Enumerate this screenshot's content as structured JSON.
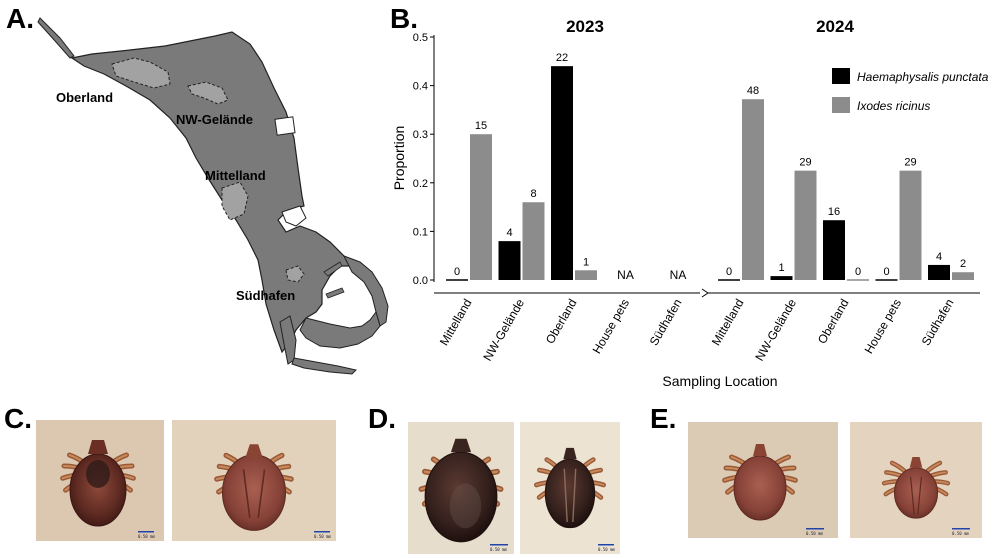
{
  "panels": {
    "A": "A.",
    "B": "B.",
    "C": "C.",
    "D": "D.",
    "E": "E."
  },
  "map": {
    "labels": [
      "Oberland",
      "NW-Gelände",
      "Mittelland",
      "Südhafen"
    ],
    "colors": {
      "land": "#7a7a7a",
      "zone": "#a2a2a2"
    }
  },
  "chart_data": {
    "type": "bar",
    "ylabel": "Proportion",
    "xlabel": "Sampling Location",
    "ylim": [
      0,
      0.5
    ],
    "yticks": [
      "0.0",
      "0.1",
      "0.2",
      "0.3",
      "0.4",
      "0.5"
    ],
    "legend": {
      "position": "top-right",
      "entries": [
        {
          "name": "Haemaphysalis punctata",
          "color": "#000000"
        },
        {
          "name": "Ixodes ricinus",
          "color": "#8c8c8c"
        }
      ]
    },
    "groups": [
      {
        "title": "2023",
        "categories": [
          "Mittelland",
          "NW-Gelände",
          "Oberland",
          "House pets",
          "Südhafen"
        ],
        "series": [
          {
            "name": "Haemaphysalis punctata",
            "values": [
              0,
              0.08,
              0.44,
              null,
              null
            ],
            "labels": [
              "0",
              "4",
              "22",
              "NA",
              "NA"
            ]
          },
          {
            "name": "Ixodes ricinus",
            "values": [
              0.3,
              0.16,
              0.02,
              null,
              null
            ],
            "labels": [
              "15",
              "8",
              "1",
              "",
              ""
            ]
          }
        ]
      },
      {
        "title": "2024",
        "categories": [
          "Mittelland",
          "NW-Gelände",
          "Oberland",
          "House pets",
          "Südhafen"
        ],
        "series": [
          {
            "name": "Haemaphysalis punctata",
            "values": [
              0,
              0.008,
              0.123,
              0,
              0.031
            ],
            "labels": [
              "0",
              "1",
              "16",
              "0",
              "4"
            ]
          },
          {
            "name": "Ixodes ricinus",
            "values": [
              0.372,
              0.225,
              0,
              0.225,
              0.016
            ],
            "labels": [
              "48",
              "29",
              "0",
              "29",
              "2"
            ]
          }
        ]
      }
    ]
  },
  "photos": {
    "C": {
      "scalebars": [
        "0.50 mm",
        "0.50 mm"
      ]
    },
    "D": {
      "scalebars": [
        "0.50 mm",
        "0.50 mm"
      ]
    },
    "E": {
      "scalebars": [
        "0.50 mm",
        "0.50 mm"
      ]
    }
  }
}
